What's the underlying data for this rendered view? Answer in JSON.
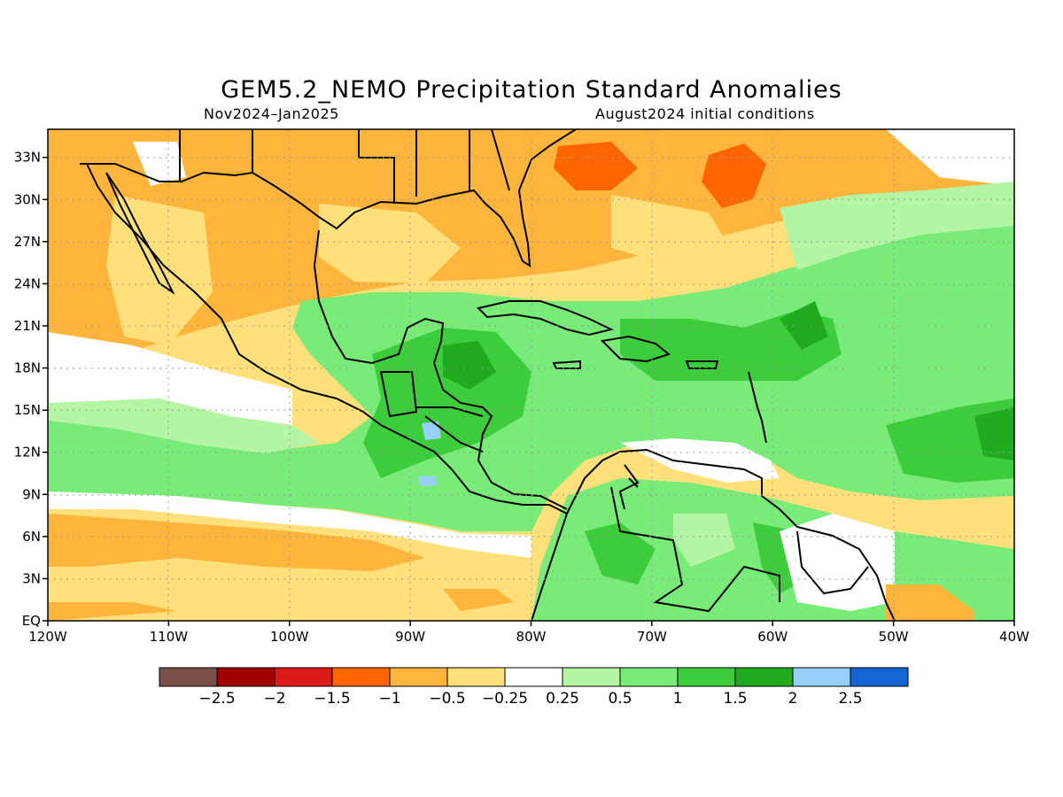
{
  "title": "GEM5.2_NEMO Precipitation Standard Anomalies",
  "subtitle_left": "Nov2024–Jan2025",
  "subtitle_right": "August2024 initial conditions",
  "map": {
    "lon_range": [
      -120,
      -40
    ],
    "lat_range": [
      0,
      35
    ],
    "x_ticks": [
      "120W",
      "110W",
      "100W",
      "90W",
      "80W",
      "70W",
      "60W",
      "50W",
      "40W"
    ],
    "y_ticks": [
      "EQ",
      "3N",
      "6N",
      "9N",
      "12N",
      "15N",
      "18N",
      "21N",
      "24N",
      "27N",
      "30N",
      "33N"
    ],
    "grid": "dotted"
  },
  "colorbar": {
    "colors": [
      "#7a4f48",
      "#a00000",
      "#dd1a1a",
      "#ff6600",
      "#ffb43c",
      "#ffe07a",
      "#ffffff",
      "#b4f5a4",
      "#78eb78",
      "#3ccc3c",
      "#1faa1f",
      "#96d0fa",
      "#1464d2"
    ],
    "labels": [
      "−2.5",
      "−2",
      "−1.5",
      "−1",
      "−0.5",
      "−0.25",
      "0.25",
      "0.5",
      "1",
      "1.5",
      "2",
      "2.5"
    ]
  }
}
